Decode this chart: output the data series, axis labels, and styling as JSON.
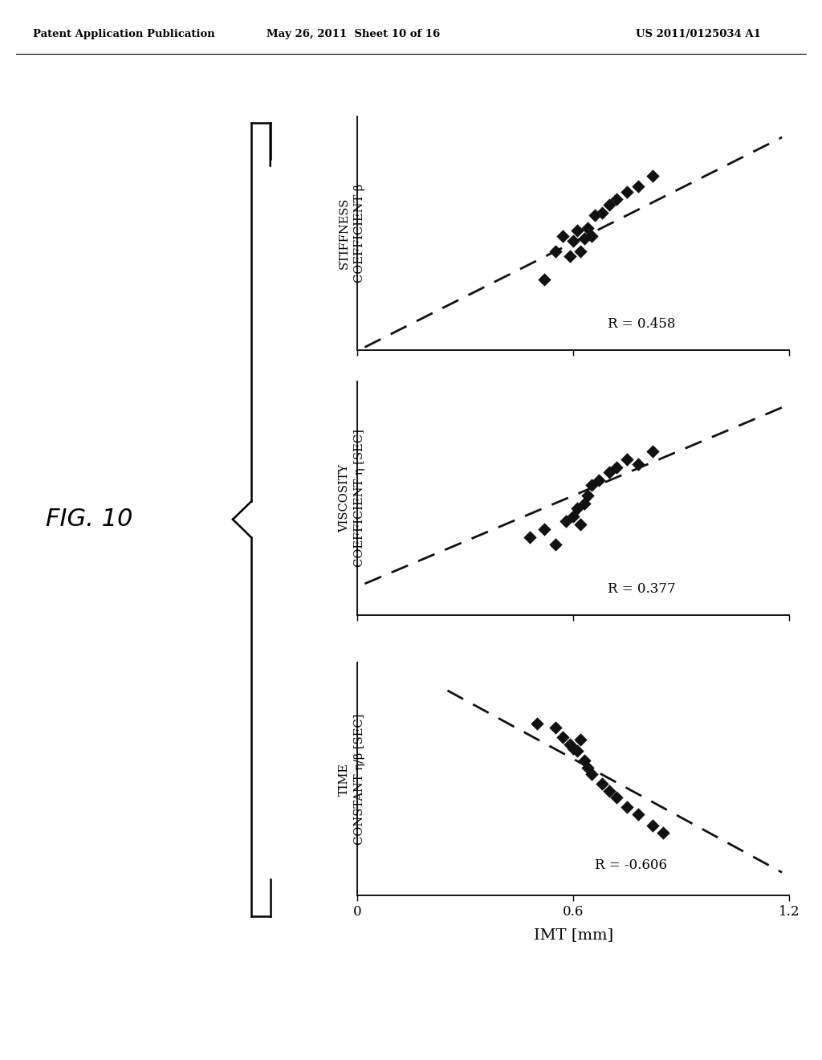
{
  "header_left": "Patent Application Publication",
  "header_mid": "May 26, 2011  Sheet 10 of 16",
  "header_right": "US 2011/0125034 A1",
  "fig_label": "FIG. 10",
  "xlabel": "IMT [mm]",
  "xlim": [
    0,
    1.2
  ],
  "xticks": [
    0,
    0.6,
    1.2
  ],
  "plots": [
    {
      "ylabel": "STIFFNESS\nCOEFFICIENT β",
      "r_label": "R = 0.458",
      "scatter_x": [
        0.52,
        0.55,
        0.57,
        0.59,
        0.6,
        0.61,
        0.62,
        0.63,
        0.64,
        0.65,
        0.66,
        0.68,
        0.7,
        0.72,
        0.75,
        0.78,
        0.82
      ],
      "scatter_y": [
        0.27,
        0.38,
        0.44,
        0.36,
        0.42,
        0.46,
        0.38,
        0.43,
        0.47,
        0.44,
        0.52,
        0.53,
        0.56,
        0.58,
        0.61,
        0.63,
        0.67
      ],
      "line_x0": 0.02,
      "line_y0": 0.01,
      "line_x1": 1.18,
      "line_y1": 0.82,
      "ylim": [
        0.0,
        0.9
      ],
      "r_pos_x": 0.58,
      "r_pos_y": 0.08
    },
    {
      "ylabel": "VISCOSITY\nCOEFFICIENT η [SEC]",
      "r_label": "R = 0.377",
      "scatter_x": [
        0.48,
        0.52,
        0.55,
        0.58,
        0.6,
        0.61,
        0.62,
        0.63,
        0.64,
        0.65,
        0.67,
        0.7,
        0.72,
        0.75,
        0.78,
        0.82
      ],
      "scatter_y": [
        0.3,
        0.33,
        0.27,
        0.36,
        0.38,
        0.41,
        0.35,
        0.43,
        0.46,
        0.5,
        0.52,
        0.55,
        0.57,
        0.6,
        0.58,
        0.63
      ],
      "line_x0": 0.02,
      "line_y0": 0.12,
      "line_x1": 1.18,
      "line_y1": 0.8,
      "ylim": [
        0.0,
        0.9
      ],
      "r_pos_x": 0.58,
      "r_pos_y": 0.08
    },
    {
      "ylabel": "TIME\nCONSTANT η/β [SEC]",
      "r_label": "R = -0.606",
      "scatter_x": [
        0.5,
        0.55,
        0.57,
        0.59,
        0.6,
        0.61,
        0.62,
        0.63,
        0.64,
        0.65,
        0.68,
        0.7,
        0.72,
        0.75,
        0.78,
        0.82,
        0.85
      ],
      "scatter_y": [
        0.74,
        0.72,
        0.68,
        0.65,
        0.63,
        0.62,
        0.67,
        0.58,
        0.55,
        0.52,
        0.48,
        0.45,
        0.42,
        0.38,
        0.35,
        0.3,
        0.27
      ],
      "line_x0": 0.25,
      "line_y0": 0.88,
      "line_x1": 1.18,
      "line_y1": 0.1,
      "ylim": [
        0.0,
        1.0
      ],
      "r_pos_x": 0.55,
      "r_pos_y": 0.1
    }
  ],
  "background_color": "#ffffff",
  "text_color": "#000000",
  "marker_color": "#111111",
  "line_color": "#111111"
}
